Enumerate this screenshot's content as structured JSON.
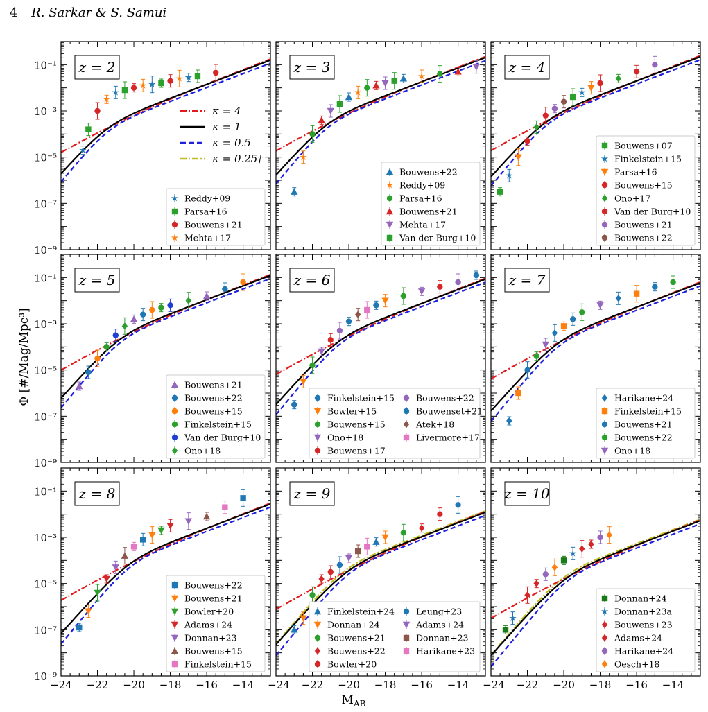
{
  "header": {
    "page_number": "4",
    "authors": "R. Sarkar & S. Samui"
  },
  "colors": {
    "kappa4": "#e31a1c",
    "kappa1": "#000000",
    "kappa05": "#1f1fe0",
    "kappa025": "#bcbd22",
    "blue": "#1f77b4",
    "orange": "#ff7f0e",
    "green": "#2ca02c",
    "red": "#d62728",
    "purple": "#9467bd",
    "brown": "#8c564b",
    "pink": "#e377c2",
    "darkblue": "#1f3fcf",
    "darkgreen": "#1a7a1a"
  },
  "chart_data": {
    "type": "line",
    "ylabel": "Φ [#/Mag/Mpc³]",
    "xlabel": "M",
    "xlabel_sub": "AB",
    "xlim": [
      -24,
      -12.5
    ],
    "ylim_log10": [
      -9,
      0
    ],
    "y_scale": "log",
    "x_ticks": [
      -24,
      -22,
      -20,
      -18,
      -16,
      -14
    ],
    "y_ticks": [
      "10⁻¹",
      "10⁻³",
      "10⁻⁵",
      "10⁻⁷",
      "10⁻⁹"
    ],
    "y_tick_values": [
      -1,
      -3,
      -5,
      -7,
      -9
    ],
    "model_legend": [
      {
        "label": "κ = 4",
        "style": "dashdot",
        "color": "#e31a1c"
      },
      {
        "label": "κ = 1",
        "style": "solid",
        "color": "#000000"
      },
      {
        "label": "κ = 0.5",
        "style": "dashed",
        "color": "#1f1fe0"
      },
      {
        "label": "κ = 0.25†",
        "style": "dashdot",
        "color": "#bcbd22"
      }
    ],
    "panels": [
      {
        "z_label": "z = 2",
        "anchor": -21.5,
        "phi": -3.5,
        "legend": [
          [
            "Reddy+09",
            "blue",
            "star"
          ],
          [
            "Parsa+16",
            "green",
            "square"
          ],
          [
            "Bouwens+21",
            "red",
            "circle"
          ],
          [
            "Mehta+17",
            "orange",
            "star"
          ]
        ],
        "points": [
          [
            -22.8,
            -4.7
          ],
          [
            -22.5,
            -3.8
          ],
          [
            -22.0,
            -3.0
          ],
          [
            -21.5,
            -2.5
          ],
          [
            -21.0,
            -2.2
          ],
          [
            -20.5,
            -2.1
          ],
          [
            -20.0,
            -2.0
          ],
          [
            -19.5,
            -1.9
          ],
          [
            -19.0,
            -1.85
          ],
          [
            -18.5,
            -1.8
          ],
          [
            -18.0,
            -1.7
          ],
          [
            -17.5,
            -1.6
          ],
          [
            -17.0,
            -1.55
          ],
          [
            -16.5,
            -1.5
          ],
          [
            -15.5,
            -1.35
          ]
        ]
      },
      {
        "z_label": "z = 3",
        "anchor": -21.2,
        "phi": -3.3,
        "legend": [
          [
            "Bouwens+22",
            "blue",
            "triangle"
          ],
          [
            "Reddy+09",
            "orange",
            "star"
          ],
          [
            "Parsa+16",
            "green",
            "circle"
          ],
          [
            "Bouwens+21",
            "red",
            "triangle"
          ],
          [
            "Mehta+17",
            "purple",
            "tridown"
          ],
          [
            "Van der Burg+10",
            "green",
            "square"
          ]
        ],
        "points": [
          [
            -23.0,
            -6.5
          ],
          [
            -22.5,
            -5.0
          ],
          [
            -22.0,
            -4.0
          ],
          [
            -21.5,
            -3.4
          ],
          [
            -21.0,
            -3.0
          ],
          [
            -20.5,
            -2.7
          ],
          [
            -20.0,
            -2.4
          ],
          [
            -19.5,
            -2.2
          ],
          [
            -19.0,
            -2.0
          ],
          [
            -18.5,
            -1.9
          ],
          [
            -18.0,
            -1.8
          ],
          [
            -17.5,
            -1.7
          ],
          [
            -17.0,
            -1.6
          ],
          [
            -16.0,
            -1.5
          ],
          [
            -15.0,
            -1.4
          ],
          [
            -14.0,
            -1.3
          ],
          [
            -13.0,
            -1.1
          ]
        ]
      },
      {
        "z_label": "z = 4",
        "anchor": -21.0,
        "phi": -3.2,
        "legend": [
          [
            "Bouwens+07",
            "green",
            "square"
          ],
          [
            "Finkelstein+15",
            "blue",
            "star"
          ],
          [
            "Parsa+16",
            "orange",
            "tridown"
          ],
          [
            "Bouwens+15",
            "red",
            "circle"
          ],
          [
            "Ono+17",
            "green",
            "diamond"
          ],
          [
            "Van der Burg+10",
            "red",
            "circle"
          ],
          [
            "Bouwens+21",
            "purple",
            "circle"
          ],
          [
            "Bouwens+22",
            "brown",
            "circle"
          ]
        ],
        "points": [
          [
            -23.5,
            -6.5
          ],
          [
            -23.0,
            -5.8
          ],
          [
            -22.5,
            -5.0
          ],
          [
            -22.0,
            -4.3
          ],
          [
            -21.5,
            -3.7
          ],
          [
            -21.0,
            -3.2
          ],
          [
            -20.5,
            -2.9
          ],
          [
            -20.0,
            -2.6
          ],
          [
            -19.5,
            -2.4
          ],
          [
            -19.0,
            -2.2
          ],
          [
            -18.5,
            -2.0
          ],
          [
            -18.0,
            -1.8
          ],
          [
            -17.0,
            -1.6
          ],
          [
            -16.0,
            -1.3
          ],
          [
            -15.0,
            -1.0
          ]
        ]
      },
      {
        "z_label": "z = 5",
        "anchor": -20.8,
        "phi": -3.4,
        "legend": [
          [
            "Bouwens+21",
            "purple",
            "triangle"
          ],
          [
            "Bouwens+22",
            "blue",
            "circle"
          ],
          [
            "Bouwens+15",
            "orange",
            "circle"
          ],
          [
            "Finkelstein+15",
            "green",
            "circle"
          ],
          [
            "Van der Burg+10",
            "darkblue",
            "circle"
          ],
          [
            "Ono+18",
            "green",
            "diamond"
          ]
        ],
        "points": [
          [
            -23.0,
            -5.7
          ],
          [
            -22.5,
            -5.1
          ],
          [
            -22.0,
            -4.5
          ],
          [
            -21.5,
            -4.0
          ],
          [
            -21.0,
            -3.5
          ],
          [
            -20.5,
            -3.1
          ],
          [
            -20.0,
            -2.8
          ],
          [
            -19.5,
            -2.6
          ],
          [
            -19.0,
            -2.4
          ],
          [
            -18.5,
            -2.3
          ],
          [
            -18.0,
            -2.2
          ],
          [
            -17.0,
            -2.0
          ],
          [
            -16.0,
            -1.8
          ],
          [
            -15.0,
            -1.5
          ],
          [
            -14.0,
            -1.2
          ]
        ]
      },
      {
        "z_label": "z = 6",
        "anchor": -20.6,
        "phi": -3.5,
        "legend": [
          [
            "Finkelstein+15",
            "blue",
            "circle"
          ],
          [
            "Bowler+15",
            "orange",
            "tridown"
          ],
          [
            "Bouwens+15",
            "green",
            "circle"
          ],
          [
            "Ono+18",
            "purple",
            "tridown"
          ],
          [
            "Bouwens+17",
            "red",
            "circle"
          ],
          [
            "Bouwens+22",
            "purple",
            "circle"
          ],
          [
            "Bouwenset+21",
            "blue",
            "circle"
          ],
          [
            "Atek+18",
            "brown",
            "diamond"
          ],
          [
            "Livermore+17",
            "pink",
            "square"
          ]
        ],
        "points": [
          [
            -23.0,
            -6.5
          ],
          [
            -22.5,
            -5.5
          ],
          [
            -22.0,
            -4.8
          ],
          [
            -21.5,
            -4.2
          ],
          [
            -21.0,
            -3.7
          ],
          [
            -20.5,
            -3.3
          ],
          [
            -20.0,
            -2.9
          ],
          [
            -19.5,
            -2.6
          ],
          [
            -19.0,
            -2.4
          ],
          [
            -18.5,
            -2.2
          ],
          [
            -18.0,
            -2.0
          ],
          [
            -17.0,
            -1.8
          ],
          [
            -16.0,
            -1.6
          ],
          [
            -15.0,
            -1.4
          ],
          [
            -14.0,
            -1.2
          ],
          [
            -13.0,
            -0.9
          ]
        ]
      },
      {
        "z_label": "z = 7",
        "anchor": -20.4,
        "phi": -3.6,
        "legend": [
          [
            "Harikane+24",
            "blue",
            "diamond"
          ],
          [
            "Finkelstein+15",
            "orange",
            "square"
          ],
          [
            "Bouwens+21",
            "blue",
            "circle"
          ],
          [
            "Bouwens+22",
            "green",
            "circle"
          ],
          [
            "Ono+18",
            "purple",
            "tridown"
          ]
        ],
        "points": [
          [
            -23.0,
            -7.2
          ],
          [
            -22.5,
            -6.0
          ],
          [
            -22.0,
            -5.0
          ],
          [
            -21.5,
            -4.4
          ],
          [
            -21.0,
            -3.9
          ],
          [
            -20.5,
            -3.4
          ],
          [
            -20.0,
            -3.1
          ],
          [
            -19.5,
            -2.8
          ],
          [
            -19.0,
            -2.5
          ],
          [
            -18.0,
            -2.2
          ],
          [
            -17.0,
            -1.9
          ],
          [
            -16.0,
            -1.7
          ],
          [
            -15.0,
            -1.4
          ],
          [
            -14.0,
            -1.2
          ]
        ]
      },
      {
        "z_label": "z = 8",
        "anchor": -20.3,
        "phi": -3.9,
        "legend": [
          [
            "Bouwens+22",
            "blue",
            "square"
          ],
          [
            "Bouwens+21",
            "orange",
            "tridown"
          ],
          [
            "Bowler+20",
            "green",
            "tridown"
          ],
          [
            "Adams+24",
            "red",
            "tridown"
          ],
          [
            "Donnan+23",
            "purple",
            "tridown"
          ],
          [
            "Bouwens+15",
            "brown",
            "triangle"
          ],
          [
            "Finkelstein+15",
            "pink",
            "square"
          ]
        ],
        "points": [
          [
            -23.0,
            -6.9
          ],
          [
            -22.5,
            -6.2
          ],
          [
            -22.0,
            -5.4
          ],
          [
            -21.5,
            -4.8
          ],
          [
            -21.0,
            -4.3
          ],
          [
            -20.5,
            -3.8
          ],
          [
            -20.0,
            -3.4
          ],
          [
            -19.5,
            -3.1
          ],
          [
            -19.0,
            -2.9
          ],
          [
            -18.5,
            -2.7
          ],
          [
            -18.0,
            -2.5
          ],
          [
            -17.0,
            -2.3
          ],
          [
            -16.0,
            -2.1
          ],
          [
            -15.0,
            -1.7
          ],
          [
            -14.0,
            -1.3
          ]
        ]
      },
      {
        "z_label": "z = 9",
        "anchor": -20.1,
        "phi": -4.2,
        "legend": [
          [
            "Finkelstein+24",
            "blue",
            "triangle"
          ],
          [
            "Donnan+24",
            "orange",
            "tridown"
          ],
          [
            "Bouwens+21",
            "green",
            "circle"
          ],
          [
            "Bouwens+22",
            "red",
            "diamond"
          ],
          [
            "Bowler+20",
            "red",
            "circle"
          ],
          [
            "Leung+23",
            "blue",
            "circle"
          ],
          [
            "Adams+24",
            "purple",
            "tridown"
          ],
          [
            "Donnan+23",
            "brown",
            "square"
          ],
          [
            "Harikane+23",
            "pink",
            "square"
          ]
        ],
        "points": [
          [
            -23.0,
            -7.0
          ],
          [
            -22.5,
            -6.5
          ],
          [
            -22.0,
            -5.5
          ],
          [
            -21.5,
            -4.8
          ],
          [
            -21.0,
            -4.5
          ],
          [
            -20.5,
            -4.2
          ],
          [
            -20.0,
            -3.9
          ],
          [
            -19.5,
            -3.6
          ],
          [
            -19.0,
            -3.4
          ],
          [
            -18.5,
            -3.2
          ],
          [
            -18.0,
            -3.0
          ],
          [
            -17.0,
            -2.8
          ],
          [
            -16.0,
            -2.6
          ],
          [
            -15.0,
            -2.0
          ],
          [
            -14.0,
            -1.6
          ]
        ]
      },
      {
        "z_label": "z = 10",
        "anchor": -19.9,
        "phi": -4.5,
        "legend": [
          [
            "Donnan+24",
            "darkgreen",
            "square"
          ],
          [
            "Donnan+23a",
            "blue",
            "star"
          ],
          [
            "Bouwens+23",
            "red",
            "diamond"
          ],
          [
            "Adams+24",
            "red",
            "diamond"
          ],
          [
            "Harikane+24",
            "purple",
            "circle"
          ],
          [
            "Oesch+18",
            "orange",
            "diamond"
          ]
        ],
        "points": [
          [
            -23.2,
            -7.0
          ],
          [
            -22.8,
            -6.5
          ],
          [
            -22.0,
            -5.5
          ],
          [
            -21.5,
            -5.0
          ],
          [
            -21.0,
            -4.6
          ],
          [
            -20.5,
            -4.3
          ],
          [
            -20.0,
            -4.0
          ],
          [
            -19.5,
            -3.7
          ],
          [
            -19.0,
            -3.5
          ],
          [
            -18.5,
            -3.3
          ],
          [
            -18.0,
            -3.0
          ],
          [
            -17.5,
            -2.9
          ]
        ]
      }
    ]
  }
}
